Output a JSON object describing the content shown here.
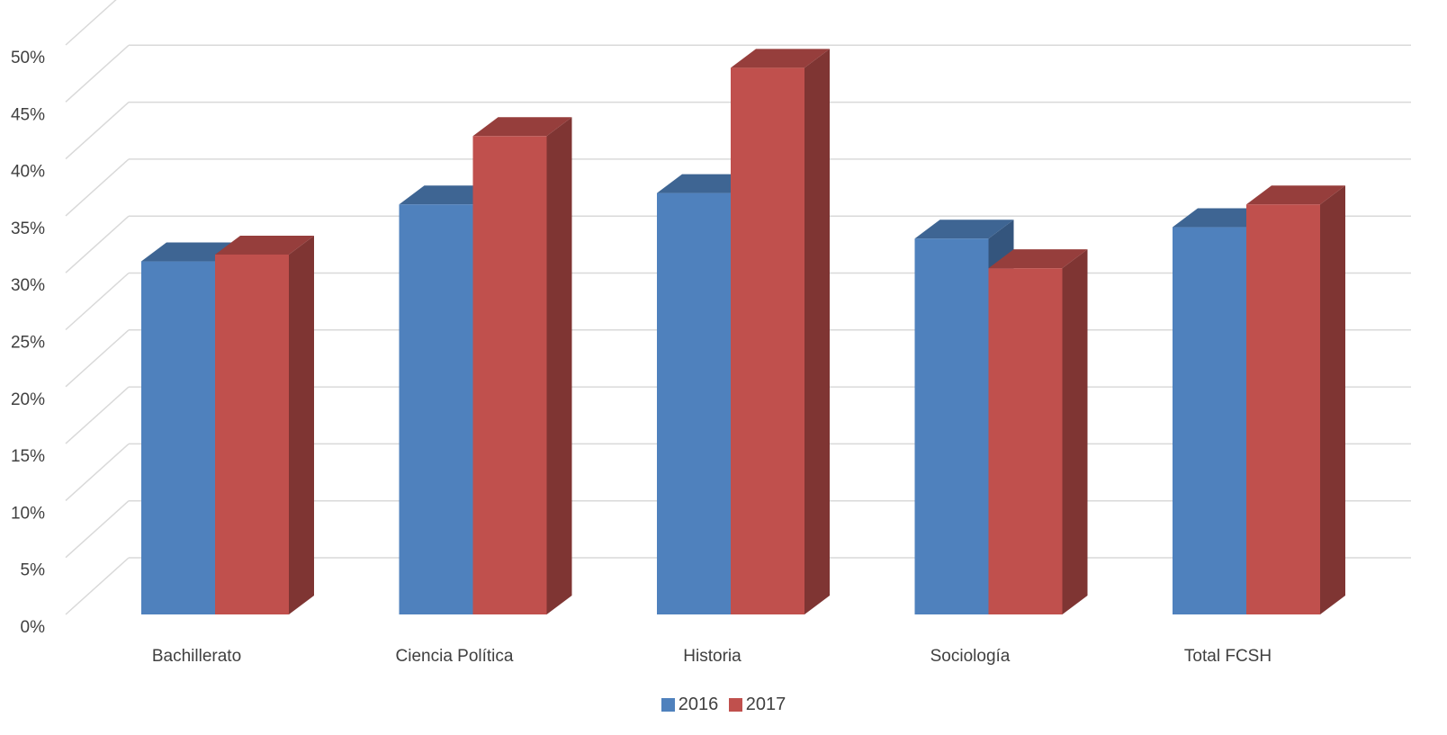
{
  "chart_data": {
    "type": "bar",
    "categories": [
      "Bachillerato",
      "Ciencia Política",
      "Historia",
      "Sociología",
      "Total FCSH"
    ],
    "series": [
      {
        "name": "2016",
        "values": [
          31,
          36,
          37,
          33,
          34
        ],
        "color": "#4F81BD"
      },
      {
        "name": "2017",
        "values": [
          31.6,
          42,
          48,
          30.4,
          36
        ],
        "color": "#C0504D"
      }
    ],
    "y_ticks": [
      "0%",
      "5%",
      "10%",
      "15%",
      "20%",
      "25%",
      "30%",
      "35%",
      "40%",
      "45%",
      "50%"
    ],
    "ylim": [
      0,
      50
    ],
    "y_unit": "%",
    "title": "",
    "xlabel": "",
    "ylabel": "",
    "grid": true,
    "three_d": true,
    "legend_position": "bottom"
  },
  "legend": [
    {
      "label": "2016",
      "color": "#4F81BD"
    },
    {
      "label": "2017",
      "color": "#C0504D"
    }
  ]
}
